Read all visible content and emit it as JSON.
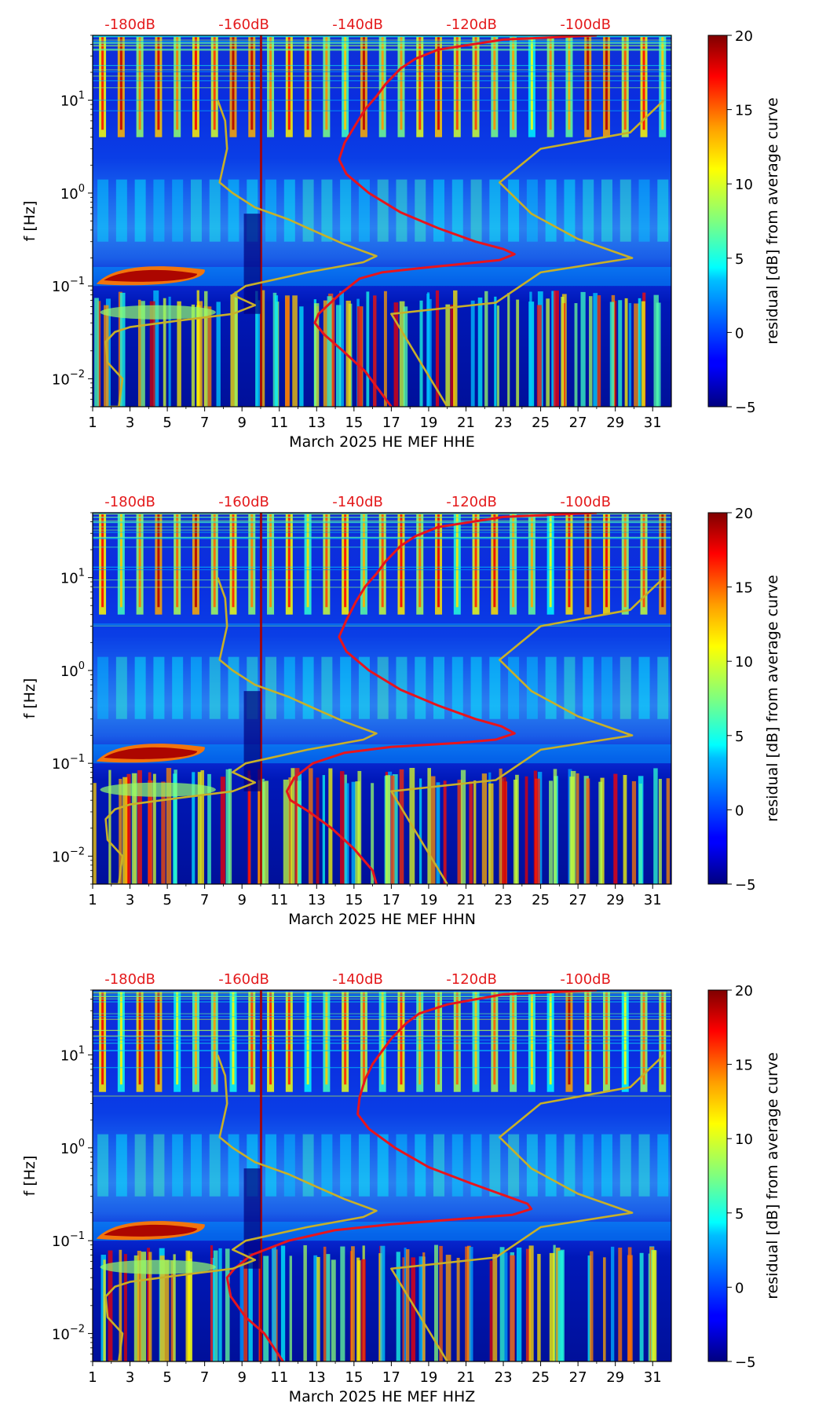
{
  "chart_data": [
    {
      "type": "heatmap",
      "title": "",
      "xlabel": "March 2025 HE MEF  HHE",
      "ylabel": "f [Hz]",
      "x_ticks": [
        "1",
        "3",
        "5",
        "7",
        "9",
        "11",
        "13",
        "15",
        "17",
        "19",
        "21",
        "23",
        "25",
        "27",
        "29",
        "31"
      ],
      "x_range": [
        1,
        32
      ],
      "y_ticks": [
        {
          "base": "10",
          "exp": "1",
          "value": 10
        },
        {
          "base": "10",
          "exp": "0",
          "value": 1
        },
        {
          "base": "10",
          "exp": "−1",
          "value": 0.1
        },
        {
          "base": "10",
          "exp": "−2",
          "value": 0.01
        }
      ],
      "y_range": [
        0.005,
        50
      ],
      "y_scale": "log",
      "top_axis_labels": [
        "-180dB",
        "-160dB",
        "-140dB",
        "-120dB",
        "-100dB"
      ],
      "top_axis_values_x": [
        3,
        9.1,
        15.2,
        21.3,
        27.4
      ],
      "colorbar": {
        "label": "residual [dB] from average curve",
        "range": [
          -5,
          20
        ],
        "ticks": [
          "20",
          "15",
          "10",
          "5",
          "0",
          "−5"
        ],
        "tick_values": [
          20,
          15,
          10,
          5,
          0,
          -5
        ]
      },
      "series": [
        {
          "name": "noise model (red)",
          "color": "#e8141c",
          "points": [
            [
              28,
              50
            ],
            [
              23,
              45
            ],
            [
              19.5,
              35
            ],
            [
              18.3,
              28
            ],
            [
              17.5,
              22
            ],
            [
              16.7,
              15
            ],
            [
              16.2,
              11
            ],
            [
              15.6,
              8
            ],
            [
              15.1,
              5.5
            ],
            [
              14.5,
              3.5
            ],
            [
              14.2,
              2.3
            ],
            [
              14.6,
              1.6
            ],
            [
              15.8,
              1.0
            ],
            [
              17.5,
              0.62
            ],
            [
              19.5,
              0.42
            ],
            [
              21.5,
              0.3
            ],
            [
              23.0,
              0.25
            ],
            [
              23.6,
              0.22
            ],
            [
              22.8,
              0.19
            ],
            [
              20.5,
              0.17
            ],
            [
              18.5,
              0.155
            ],
            [
              16.5,
              0.14
            ],
            [
              15.3,
              0.12
            ],
            [
              14.2,
              0.08
            ],
            [
              13.1,
              0.05
            ],
            [
              12.9,
              0.04
            ],
            [
              13.4,
              0.03
            ],
            [
              14.4,
              0.02
            ],
            [
              15.6,
              0.012
            ],
            [
              17.0,
              0.005
            ]
          ]
        },
        {
          "name": "reference curve (olive)",
          "color": "#c8b028",
          "points": [
            [
              1.9,
              0.005
            ],
            [
              2.4,
              0.005
            ],
            [
              2.6,
              0.01
            ],
            [
              1.8,
              0.015
            ],
            [
              1.7,
              0.025
            ],
            [
              2.2,
              0.032
            ],
            [
              3.0,
              0.036
            ],
            [
              5.5,
              0.042
            ],
            [
              8.5,
              0.05
            ],
            [
              9.7,
              0.062
            ],
            [
              8.5,
              0.08
            ],
            [
              9.2,
              0.1
            ],
            [
              12.5,
              0.14
            ],
            [
              15.5,
              0.18
            ],
            [
              16.2,
              0.21
            ],
            [
              14.5,
              0.28
            ],
            [
              13.0,
              0.38
            ],
            [
              11.5,
              0.52
            ],
            [
              9.7,
              0.7
            ],
            [
              8.5,
              1.0
            ],
            [
              7.8,
              1.3
            ],
            [
              8.2,
              3.0
            ],
            [
              8.1,
              6.0
            ],
            [
              7.7,
              10
            ]
          ]
        },
        {
          "name": "reference curve right (olive)",
          "color": "#c8b028",
          "points": [
            [
              20.0,
              0.005
            ],
            [
              17.0,
              0.05
            ],
            [
              22.6,
              0.066
            ],
            [
              25.0,
              0.14
            ],
            [
              29.9,
              0.2
            ],
            [
              27.0,
              0.32
            ],
            [
              24.5,
              0.6
            ],
            [
              22.8,
              1.3
            ],
            [
              25.0,
              3.0
            ],
            [
              29.8,
              4.5
            ],
            [
              31.6,
              10
            ]
          ]
        }
      ]
    },
    {
      "type": "heatmap",
      "title": "",
      "xlabel": "March 2025 HE MEF  HHN",
      "ylabel": "f [Hz]",
      "x_ticks": [
        "1",
        "3",
        "5",
        "7",
        "9",
        "11",
        "13",
        "15",
        "17",
        "19",
        "21",
        "23",
        "25",
        "27",
        "29",
        "31"
      ],
      "x_range": [
        1,
        32
      ],
      "y_ticks": [
        {
          "base": "10",
          "exp": "1",
          "value": 10
        },
        {
          "base": "10",
          "exp": "0",
          "value": 1
        },
        {
          "base": "10",
          "exp": "−1",
          "value": 0.1
        },
        {
          "base": "10",
          "exp": "−2",
          "value": 0.01
        }
      ],
      "y_range": [
        0.005,
        50
      ],
      "y_scale": "log",
      "top_axis_labels": [
        "-180dB",
        "-160dB",
        "-140dB",
        "-120dB",
        "-100dB"
      ],
      "top_axis_values_x": [
        3,
        9.1,
        15.2,
        21.3,
        27.4
      ],
      "colorbar": {
        "label": "residual [dB] from average curve",
        "range": [
          -5,
          20
        ],
        "ticks": [
          "20",
          "15",
          "10",
          "5",
          "0",
          "−5"
        ],
        "tick_values": [
          20,
          15,
          10,
          5,
          0,
          -5
        ]
      },
      "series": [
        {
          "name": "noise model (red)",
          "color": "#e8141c",
          "points": [
            [
              28,
              50
            ],
            [
              23,
              45
            ],
            [
              19.5,
              35
            ],
            [
              18.3,
              28
            ],
            [
              17.5,
              22
            ],
            [
              16.7,
              15
            ],
            [
              16.2,
              11
            ],
            [
              15.6,
              8
            ],
            [
              15.1,
              5.5
            ],
            [
              14.6,
              3.5
            ],
            [
              14.2,
              2.3
            ],
            [
              14.6,
              1.6
            ],
            [
              15.8,
              1.0
            ],
            [
              17.5,
              0.62
            ],
            [
              19.5,
              0.42
            ],
            [
              21.5,
              0.3
            ],
            [
              22.9,
              0.25
            ],
            [
              23.6,
              0.21
            ],
            [
              22.6,
              0.18
            ],
            [
              20.5,
              0.165
            ],
            [
              17.0,
              0.15
            ],
            [
              14.5,
              0.13
            ],
            [
              12.8,
              0.1
            ],
            [
              11.8,
              0.07
            ],
            [
              11.4,
              0.05
            ],
            [
              11.6,
              0.04
            ],
            [
              12.6,
              0.03
            ],
            [
              13.8,
              0.02
            ],
            [
              15.0,
              0.012
            ],
            [
              16.0,
              0.007
            ],
            [
              16.2,
              0.005
            ]
          ]
        },
        {
          "name": "reference curve (olive)",
          "color": "#c8b028",
          "points": [
            [
              1.9,
              0.005
            ],
            [
              2.4,
              0.005
            ],
            [
              2.6,
              0.01
            ],
            [
              1.8,
              0.015
            ],
            [
              1.7,
              0.025
            ],
            [
              2.2,
              0.032
            ],
            [
              3.0,
              0.036
            ],
            [
              5.5,
              0.042
            ],
            [
              8.5,
              0.05
            ],
            [
              9.7,
              0.062
            ],
            [
              8.5,
              0.08
            ],
            [
              9.2,
              0.1
            ],
            [
              12.5,
              0.14
            ],
            [
              15.5,
              0.18
            ],
            [
              16.2,
              0.21
            ],
            [
              14.5,
              0.28
            ],
            [
              13.0,
              0.38
            ],
            [
              11.5,
              0.52
            ],
            [
              9.7,
              0.7
            ],
            [
              8.5,
              1.0
            ],
            [
              7.8,
              1.3
            ],
            [
              8.2,
              3.0
            ],
            [
              8.1,
              6.0
            ],
            [
              7.7,
              10
            ]
          ]
        },
        {
          "name": "reference curve right (olive)",
          "color": "#c8b028",
          "points": [
            [
              20.0,
              0.005
            ],
            [
              17.0,
              0.05
            ],
            [
              22.6,
              0.066
            ],
            [
              25.0,
              0.14
            ],
            [
              29.9,
              0.2
            ],
            [
              27.0,
              0.32
            ],
            [
              24.5,
              0.6
            ],
            [
              22.8,
              1.3
            ],
            [
              25.0,
              3.0
            ],
            [
              29.8,
              4.5
            ],
            [
              31.6,
              10
            ]
          ]
        }
      ]
    },
    {
      "type": "heatmap",
      "title": "",
      "xlabel": "March 2025 HE MEF  HHZ",
      "ylabel": "f [Hz]",
      "x_ticks": [
        "1",
        "3",
        "5",
        "7",
        "9",
        "11",
        "13",
        "15",
        "17",
        "19",
        "21",
        "23",
        "25",
        "27",
        "29",
        "31"
      ],
      "x_range": [
        1,
        32
      ],
      "y_ticks": [
        {
          "base": "10",
          "exp": "1",
          "value": 10
        },
        {
          "base": "10",
          "exp": "0",
          "value": 1
        },
        {
          "base": "10",
          "exp": "−1",
          "value": 0.1
        },
        {
          "base": "10",
          "exp": "−2",
          "value": 0.01
        }
      ],
      "y_range": [
        0.005,
        50
      ],
      "y_scale": "log",
      "top_axis_labels": [
        "-180dB",
        "-160dB",
        "-140dB",
        "-120dB",
        "-100dB"
      ],
      "top_axis_values_x": [
        3,
        9.1,
        15.2,
        21.3,
        27.4
      ],
      "colorbar": {
        "label": "residual [dB] from average curve",
        "range": [
          -5,
          20
        ],
        "ticks": [
          "20",
          "15",
          "10",
          "5",
          "0",
          "−5"
        ],
        "tick_values": [
          20,
          15,
          10,
          5,
          0,
          -5
        ]
      },
      "series": [
        {
          "name": "noise model (red)",
          "color": "#e8141c",
          "points": [
            [
              28,
              50
            ],
            [
              23,
              45
            ],
            [
              20,
              35
            ],
            [
              18.5,
              28
            ],
            [
              17.8,
              22
            ],
            [
              17.0,
              15
            ],
            [
              16.5,
              11
            ],
            [
              16.0,
              8
            ],
            [
              15.6,
              5.5
            ],
            [
              15.3,
              3.5
            ],
            [
              15.2,
              2.3
            ],
            [
              15.8,
              1.6
            ],
            [
              17.2,
              1.0
            ],
            [
              19.0,
              0.62
            ],
            [
              21.2,
              0.42
            ],
            [
              23.2,
              0.3
            ],
            [
              24.3,
              0.25
            ],
            [
              24.5,
              0.22
            ],
            [
              23.5,
              0.19
            ],
            [
              20.5,
              0.17
            ],
            [
              17.0,
              0.15
            ],
            [
              14.0,
              0.13
            ],
            [
              11.5,
              0.1
            ],
            [
              9.5,
              0.07
            ],
            [
              8.6,
              0.05
            ],
            [
              8.2,
              0.04
            ],
            [
              8.4,
              0.025
            ],
            [
              9.2,
              0.015
            ],
            [
              10.2,
              0.01
            ],
            [
              11.2,
              0.005
            ]
          ]
        },
        {
          "name": "reference curve (olive)",
          "color": "#c8b028",
          "points": [
            [
              1.9,
              0.005
            ],
            [
              2.4,
              0.005
            ],
            [
              2.6,
              0.01
            ],
            [
              1.8,
              0.015
            ],
            [
              1.7,
              0.025
            ],
            [
              2.2,
              0.032
            ],
            [
              3.0,
              0.036
            ],
            [
              5.5,
              0.042
            ],
            [
              8.5,
              0.05
            ],
            [
              9.7,
              0.062
            ],
            [
              8.5,
              0.08
            ],
            [
              9.2,
              0.1
            ],
            [
              12.5,
              0.14
            ],
            [
              15.5,
              0.18
            ],
            [
              16.2,
              0.21
            ],
            [
              14.5,
              0.28
            ],
            [
              13.0,
              0.38
            ],
            [
              11.5,
              0.52
            ],
            [
              9.7,
              0.7
            ],
            [
              8.5,
              1.0
            ],
            [
              7.8,
              1.3
            ],
            [
              8.2,
              3.0
            ],
            [
              8.1,
              6.0
            ],
            [
              7.7,
              10
            ]
          ]
        },
        {
          "name": "reference curve right (olive)",
          "color": "#c8b028",
          "points": [
            [
              20.0,
              0.005
            ],
            [
              17.0,
              0.05
            ],
            [
              22.6,
              0.066
            ],
            [
              25.0,
              0.14
            ],
            [
              29.9,
              0.2
            ],
            [
              27.0,
              0.32
            ],
            [
              24.5,
              0.6
            ],
            [
              22.8,
              1.3
            ],
            [
              25.0,
              3.0
            ],
            [
              29.8,
              4.5
            ],
            [
              31.6,
              10
            ]
          ]
        }
      ]
    }
  ]
}
